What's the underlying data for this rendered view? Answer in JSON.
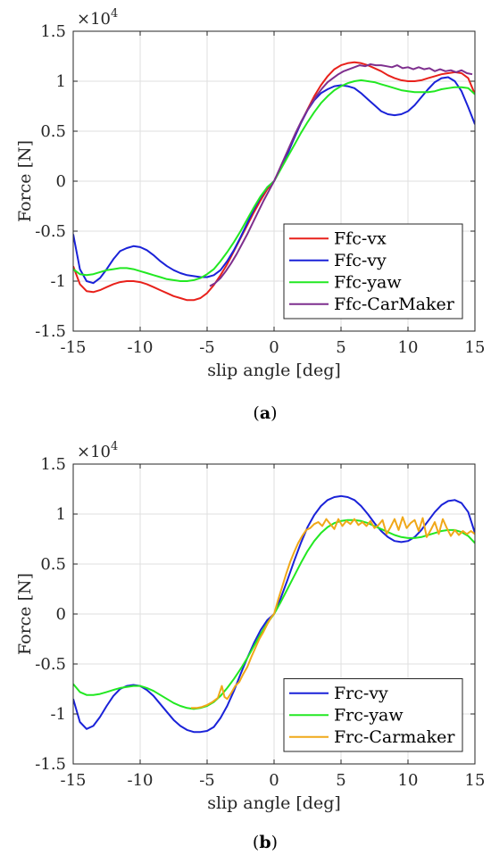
{
  "chart_data": [
    {
      "type": "line",
      "caption_letter": "a",
      "xlabel": "slip angle [deg]",
      "ylabel": "Force [N]",
      "exponent_label": "×10",
      "exponent_power": "4",
      "xlim": [
        -15,
        15
      ],
      "ylim": [
        -1.5,
        1.5
      ],
      "xticks": [
        -15,
        -10,
        -5,
        0,
        5,
        10,
        15
      ],
      "xtick_labels": [
        "-15",
        "-10",
        "-5",
        "0",
        "5",
        "10",
        "15"
      ],
      "yticks": [
        -1.5,
        -1,
        -0.5,
        0,
        0.5,
        1,
        1.5
      ],
      "ytick_labels": [
        "-1.5",
        "-1",
        "-0.5",
        "0",
        "0.5",
        "1",
        "1.5"
      ],
      "grid": true,
      "legend_position": "bottom-right",
      "series": [
        {
          "name": "Ffc-vx",
          "color": "#e8211b",
          "x": [
            -15,
            -14.5,
            -14,
            -13.5,
            -13,
            -12.5,
            -12,
            -11.5,
            -11,
            -10.5,
            -10,
            -9.5,
            -9,
            -8.5,
            -8,
            -7.5,
            -7,
            -6.5,
            -6,
            -5.5,
            -5,
            -4.5,
            -4,
            -3.5,
            -3,
            -2.5,
            -2,
            -1.5,
            -1,
            -0.5,
            0,
            0.5,
            1,
            1.5,
            2,
            2.5,
            3,
            3.5,
            4,
            4.5,
            5,
            5.5,
            6,
            6.5,
            7,
            7.5,
            8,
            8.5,
            9,
            9.5,
            10,
            10.5,
            11,
            11.5,
            12,
            12.5,
            13,
            13.5,
            14,
            14.5,
            15
          ],
          "y": [
            -0.85,
            -1.03,
            -1.1,
            -1.11,
            -1.09,
            -1.06,
            -1.03,
            -1.01,
            -1.0,
            -1.0,
            -1.01,
            -1.03,
            -1.06,
            -1.09,
            -1.12,
            -1.15,
            -1.17,
            -1.19,
            -1.19,
            -1.17,
            -1.12,
            -1.04,
            -0.94,
            -0.83,
            -0.7,
            -0.57,
            -0.44,
            -0.31,
            -0.19,
            -0.08,
            0.0,
            0.14,
            0.28,
            0.43,
            0.58,
            0.72,
            0.85,
            0.96,
            1.05,
            1.12,
            1.16,
            1.18,
            1.19,
            1.18,
            1.16,
            1.13,
            1.1,
            1.06,
            1.03,
            1.01,
            1.0,
            1.0,
            1.01,
            1.03,
            1.05,
            1.07,
            1.08,
            1.09,
            1.08,
            1.03,
            0.87
          ]
        },
        {
          "name": "Ffc-vy",
          "color": "#1a22d8",
          "x": [
            -15,
            -14.5,
            -14,
            -13.5,
            -13,
            -12.5,
            -12,
            -11.5,
            -11,
            -10.5,
            -10,
            -9.5,
            -9,
            -8.5,
            -8,
            -7.5,
            -7,
            -6.5,
            -6,
            -5.5,
            -5,
            -4.5,
            -4,
            -3.5,
            -3,
            -2.5,
            -2,
            -1.5,
            -1,
            -0.5,
            0,
            0.5,
            1,
            1.5,
            2,
            2.5,
            3,
            3.5,
            4,
            4.5,
            5,
            5.5,
            6,
            6.5,
            7,
            7.5,
            8,
            8.5,
            9,
            9.5,
            10,
            10.5,
            11,
            11.5,
            12,
            12.5,
            13,
            13.5,
            14,
            14.5,
            15
          ],
          "y": [
            -0.53,
            -0.88,
            -1.0,
            -1.02,
            -0.97,
            -0.88,
            -0.78,
            -0.7,
            -0.67,
            -0.65,
            -0.66,
            -0.69,
            -0.74,
            -0.8,
            -0.85,
            -0.89,
            -0.92,
            -0.94,
            -0.95,
            -0.96,
            -0.96,
            -0.94,
            -0.89,
            -0.8,
            -0.69,
            -0.56,
            -0.42,
            -0.28,
            -0.16,
            -0.06,
            0.0,
            0.13,
            0.27,
            0.43,
            0.58,
            0.71,
            0.81,
            0.88,
            0.92,
            0.95,
            0.96,
            0.95,
            0.93,
            0.88,
            0.82,
            0.76,
            0.7,
            0.67,
            0.66,
            0.67,
            0.7,
            0.76,
            0.84,
            0.92,
            0.99,
            1.03,
            1.04,
            1.0,
            0.9,
            0.74,
            0.57
          ]
        },
        {
          "name": "Ffc-yaw",
          "color": "#22e822",
          "x": [
            -15,
            -14.5,
            -14,
            -13.5,
            -13,
            -12.5,
            -12,
            -11.5,
            -11,
            -10.5,
            -10,
            -9.5,
            -9,
            -8.5,
            -8,
            -7.5,
            -7,
            -6.5,
            -6,
            -5.5,
            -5,
            -4.5,
            -4,
            -3.5,
            -3,
            -2.5,
            -2,
            -1.5,
            -1,
            -0.5,
            0,
            0.5,
            1,
            1.5,
            2,
            2.5,
            3,
            3.5,
            4,
            4.5,
            5,
            5.5,
            6,
            6.5,
            7,
            7.5,
            8,
            8.5,
            9,
            9.5,
            10,
            10.5,
            11,
            11.5,
            12,
            12.5,
            13,
            13.5,
            14,
            14.5,
            15
          ],
          "y": [
            -0.88,
            -0.93,
            -0.94,
            -0.93,
            -0.91,
            -0.89,
            -0.88,
            -0.87,
            -0.87,
            -0.88,
            -0.9,
            -0.92,
            -0.94,
            -0.96,
            -0.98,
            -0.99,
            -1.0,
            -1.0,
            -0.99,
            -0.97,
            -0.93,
            -0.88,
            -0.8,
            -0.71,
            -0.61,
            -0.5,
            -0.38,
            -0.26,
            -0.15,
            -0.06,
            0.0,
            0.12,
            0.24,
            0.36,
            0.48,
            0.59,
            0.69,
            0.78,
            0.85,
            0.91,
            0.95,
            0.98,
            1.0,
            1.01,
            1.0,
            0.99,
            0.97,
            0.95,
            0.93,
            0.91,
            0.9,
            0.89,
            0.89,
            0.89,
            0.9,
            0.92,
            0.93,
            0.94,
            0.94,
            0.93,
            0.87
          ]
        },
        {
          "name": "Ffc-CarMaker",
          "color": "#7e2f8e",
          "x": [
            -4.8,
            -4.4,
            -4,
            -3.6,
            -3.2,
            -2.8,
            -2.4,
            -2,
            -1.6,
            -1.2,
            -0.8,
            -0.4,
            0,
            0.4,
            0.8,
            1.2,
            1.6,
            2,
            2.4,
            2.8,
            3.2,
            3.6,
            4,
            4.4,
            4.8,
            5.2,
            5.6,
            6,
            6.4,
            6.8,
            7.2,
            7.6,
            8,
            8.4,
            8.8,
            9.2,
            9.6,
            10,
            10.4,
            10.8,
            11.2,
            11.6,
            12,
            12.4,
            12.8,
            13.2,
            13.6,
            14,
            14.4,
            14.8
          ],
          "y": [
            -1.05,
            -1.02,
            -0.97,
            -0.9,
            -0.82,
            -0.73,
            -0.63,
            -0.53,
            -0.42,
            -0.31,
            -0.2,
            -0.1,
            0.0,
            0.12,
            0.24,
            0.36,
            0.48,
            0.59,
            0.69,
            0.78,
            0.86,
            0.93,
            0.99,
            1.03,
            1.07,
            1.1,
            1.12,
            1.14,
            1.16,
            1.15,
            1.17,
            1.16,
            1.16,
            1.15,
            1.14,
            1.16,
            1.13,
            1.14,
            1.12,
            1.14,
            1.12,
            1.13,
            1.1,
            1.12,
            1.1,
            1.11,
            1.09,
            1.11,
            1.08,
            1.07
          ]
        }
      ]
    },
    {
      "type": "line",
      "caption_letter": "b",
      "xlabel": "slip angle [deg]",
      "ylabel": "Force [N]",
      "exponent_label": "×10",
      "exponent_power": "4",
      "xlim": [
        -15,
        15
      ],
      "ylim": [
        -1.5,
        1.5
      ],
      "xticks": [
        -15,
        -10,
        -5,
        0,
        5,
        10,
        15
      ],
      "xtick_labels": [
        "-15",
        "-10",
        "-5",
        "0",
        "5",
        "10",
        "15"
      ],
      "yticks": [
        -1.5,
        -1,
        -0.5,
        0,
        0.5,
        1,
        1.5
      ],
      "ytick_labels": [
        "-1.5",
        "-1",
        "-0.5",
        "0",
        "0.5",
        "1",
        "1.5"
      ],
      "grid": true,
      "legend_position": "bottom-right",
      "series": [
        {
          "name": "Frc-vy",
          "color": "#1a22d8",
          "x": [
            -15,
            -14.5,
            -14,
            -13.5,
            -13,
            -12.5,
            -12,
            -11.5,
            -11,
            -10.5,
            -10,
            -9.5,
            -9,
            -8.5,
            -8,
            -7.5,
            -7,
            -6.5,
            -6,
            -5.5,
            -5,
            -4.5,
            -4,
            -3.5,
            -3,
            -2.5,
            -2,
            -1.5,
            -1,
            -0.5,
            0,
            0.5,
            1,
            1.5,
            2,
            2.5,
            3,
            3.5,
            4,
            4.5,
            5,
            5.5,
            6,
            6.5,
            7,
            7.5,
            8,
            8.5,
            9,
            9.5,
            10,
            10.5,
            11,
            11.5,
            12,
            12.5,
            13,
            13.5,
            14,
            14.5,
            15
          ],
          "y": [
            -0.85,
            -1.08,
            -1.15,
            -1.12,
            -1.03,
            -0.92,
            -0.82,
            -0.75,
            -0.72,
            -0.71,
            -0.72,
            -0.76,
            -0.82,
            -0.9,
            -0.98,
            -1.06,
            -1.12,
            -1.16,
            -1.18,
            -1.18,
            -1.17,
            -1.13,
            -1.04,
            -0.92,
            -0.77,
            -0.6,
            -0.44,
            -0.29,
            -0.16,
            -0.06,
            0.0,
            0.16,
            0.34,
            0.53,
            0.71,
            0.87,
            0.99,
            1.08,
            1.14,
            1.17,
            1.18,
            1.17,
            1.14,
            1.08,
            1.0,
            0.91,
            0.83,
            0.77,
            0.73,
            0.72,
            0.73,
            0.77,
            0.84,
            0.93,
            1.02,
            1.09,
            1.13,
            1.14,
            1.11,
            1.02,
            0.81
          ]
        },
        {
          "name": "Frc-yaw",
          "color": "#22e822",
          "x": [
            -15,
            -14.5,
            -14,
            -13.5,
            -13,
            -12.5,
            -12,
            -11.5,
            -11,
            -10.5,
            -10,
            -9.5,
            -9,
            -8.5,
            -8,
            -7.5,
            -7,
            -6.5,
            -6,
            -5.5,
            -5,
            -4.5,
            -4,
            -3.5,
            -3,
            -2.5,
            -2,
            -1.5,
            -1,
            -0.5,
            0,
            0.5,
            1,
            1.5,
            2,
            2.5,
            3,
            3.5,
            4,
            4.5,
            5,
            5.5,
            6,
            6.5,
            7,
            7.5,
            8,
            8.5,
            9,
            9.5,
            10,
            10.5,
            11,
            11.5,
            12,
            12.5,
            13,
            13.5,
            14,
            14.5,
            15
          ],
          "y": [
            -0.7,
            -0.78,
            -0.81,
            -0.81,
            -0.8,
            -0.78,
            -0.76,
            -0.74,
            -0.73,
            -0.72,
            -0.72,
            -0.74,
            -0.77,
            -0.81,
            -0.85,
            -0.89,
            -0.92,
            -0.94,
            -0.95,
            -0.94,
            -0.92,
            -0.88,
            -0.82,
            -0.74,
            -0.65,
            -0.55,
            -0.44,
            -0.32,
            -0.2,
            -0.09,
            0.0,
            0.12,
            0.25,
            0.38,
            0.51,
            0.63,
            0.73,
            0.81,
            0.87,
            0.91,
            0.93,
            0.94,
            0.94,
            0.93,
            0.91,
            0.88,
            0.85,
            0.82,
            0.79,
            0.77,
            0.76,
            0.76,
            0.77,
            0.79,
            0.81,
            0.83,
            0.84,
            0.84,
            0.82,
            0.78,
            0.71
          ]
        },
        {
          "name": "Frc-Carmaker",
          "color": "#f0a818",
          "x": [
            -6.2,
            -5.8,
            -5.4,
            -5,
            -4.6,
            -4.2,
            -3.9,
            -3.7,
            -3.5,
            -3.2,
            -2.9,
            -2.6,
            -2.3,
            -2,
            -1.7,
            -1.4,
            -1.1,
            -0.8,
            -0.5,
            -0.2,
            0,
            0.3,
            0.6,
            0.9,
            1.2,
            1.5,
            1.8,
            2.1,
            2.4,
            2.7,
            3,
            3.3,
            3.6,
            3.9,
            4.2,
            4.5,
            4.8,
            5.1,
            5.4,
            5.7,
            6,
            6.3,
            6.6,
            6.9,
            7.2,
            7.5,
            7.8,
            8.1,
            8.4,
            8.7,
            9,
            9.3,
            9.6,
            9.9,
            10.2,
            10.5,
            10.8,
            11.1,
            11.4,
            11.7,
            12,
            12.3,
            12.6,
            12.9,
            13.2,
            13.5,
            13.8,
            14.1,
            14.4,
            14.7,
            15
          ],
          "y": [
            -0.94,
            -0.94,
            -0.93,
            -0.91,
            -0.88,
            -0.84,
            -0.72,
            -0.83,
            -0.85,
            -0.79,
            -0.72,
            -0.68,
            -0.6,
            -0.53,
            -0.43,
            -0.34,
            -0.25,
            -0.18,
            -0.1,
            -0.03,
            0.0,
            0.14,
            0.27,
            0.4,
            0.52,
            0.62,
            0.71,
            0.78,
            0.84,
            0.86,
            0.9,
            0.92,
            0.88,
            0.95,
            0.9,
            0.85,
            0.95,
            0.88,
            0.93,
            0.9,
            0.95,
            0.89,
            0.92,
            0.88,
            0.93,
            0.86,
            0.89,
            0.94,
            0.8,
            0.87,
            0.95,
            0.84,
            0.97,
            0.86,
            0.91,
            0.94,
            0.83,
            0.96,
            0.77,
            0.84,
            0.92,
            0.8,
            0.95,
            0.86,
            0.78,
            0.84,
            0.79,
            0.83,
            0.8,
            0.83,
            0.8
          ]
        }
      ]
    }
  ]
}
